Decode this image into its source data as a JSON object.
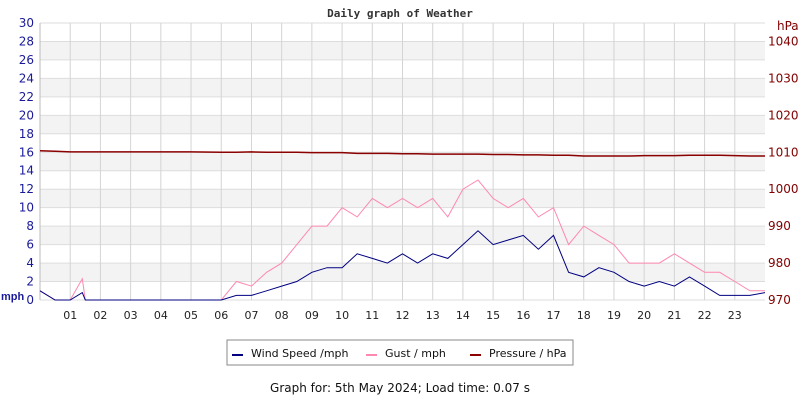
{
  "chart_data": {
    "type": "line",
    "title": "Daily graph of Weather",
    "x_unit": "hour",
    "xlim": [
      0,
      24
    ],
    "x_tick_labels": [
      "01",
      "02",
      "03",
      "04",
      "05",
      "06",
      "07",
      "08",
      "09",
      "10",
      "11",
      "12",
      "13",
      "14",
      "15",
      "16",
      "17",
      "18",
      "19",
      "20",
      "21",
      "22",
      "23"
    ],
    "ylabel_left": "mph",
    "ylim_left": [
      0,
      30
    ],
    "y_ticks_left": [
      0,
      2,
      4,
      6,
      8,
      10,
      12,
      14,
      16,
      18,
      20,
      22,
      24,
      26,
      28,
      30
    ],
    "ylabel_right": "hPa",
    "ylim_right": [
      970,
      1045
    ],
    "y_ticks_right": [
      970,
      980,
      990,
      1000,
      1010,
      1020,
      1030,
      1040
    ],
    "grid": true,
    "legend_position": "bottom",
    "x": [
      0,
      0.5,
      1,
      1.4,
      1.5,
      2,
      3,
      4,
      5,
      6,
      6.5,
      7,
      7.5,
      8,
      8.5,
      9,
      9.5,
      10,
      10.5,
      11,
      11.5,
      12,
      12.5,
      13,
      13.5,
      14,
      14.5,
      15,
      15.5,
      16,
      16.5,
      17,
      17.5,
      18,
      18.5,
      19,
      19.5,
      20,
      20.5,
      21,
      21.5,
      22,
      22.5,
      23,
      23.5,
      24
    ],
    "series": [
      {
        "name": "Wind Speed /mph",
        "axis": "left",
        "color": "#000080",
        "values": [
          1,
          0,
          0,
          0.8,
          0,
          0,
          0,
          0,
          0,
          0,
          0.5,
          0.5,
          1,
          1.5,
          2,
          3,
          3.5,
          3.5,
          5,
          4.5,
          4,
          5,
          4,
          5,
          4.5,
          6,
          7.5,
          6,
          6.5,
          7,
          5.5,
          7,
          3,
          2.5,
          3.5,
          3,
          2,
          1.5,
          2,
          1.5,
          2.5,
          1.5,
          0.5,
          0.5,
          0.5,
          0.8
        ]
      },
      {
        "name": "Gust / mph",
        "axis": "left",
        "color": "#ff88b0",
        "values": [
          1,
          0,
          0,
          2.3,
          0,
          0,
          0,
          0,
          0,
          0,
          2,
          1.5,
          3,
          4,
          6,
          8,
          8,
          10,
          9,
          11,
          10,
          11,
          10,
          11,
          9,
          12,
          13,
          11,
          10,
          11,
          9,
          10,
          6,
          8,
          7,
          6,
          4,
          4,
          4,
          5,
          4,
          3,
          3,
          2,
          1,
          1
        ]
      },
      {
        "name": "Pressure / hPa",
        "axis": "right",
        "color": "#8b0000",
        "values": [
          1010.4,
          1010.3,
          1010.1,
          1010.1,
          1010.1,
          1010.1,
          1010.1,
          1010.1,
          1010.1,
          1010.0,
          1010.0,
          1010.1,
          1010.0,
          1010.0,
          1010.0,
          1009.9,
          1009.9,
          1009.9,
          1009.7,
          1009.7,
          1009.7,
          1009.6,
          1009.6,
          1009.5,
          1009.5,
          1009.5,
          1009.5,
          1009.4,
          1009.4,
          1009.3,
          1009.3,
          1009.2,
          1009.2,
          1009.0,
          1009.0,
          1009.0,
          1009.0,
          1009.1,
          1009.1,
          1009.1,
          1009.2,
          1009.2,
          1009.2,
          1009.1,
          1009.0,
          1009.0
        ]
      }
    ]
  },
  "footer": "Graph for: 5th May 2024; Load time: 0.07 s"
}
